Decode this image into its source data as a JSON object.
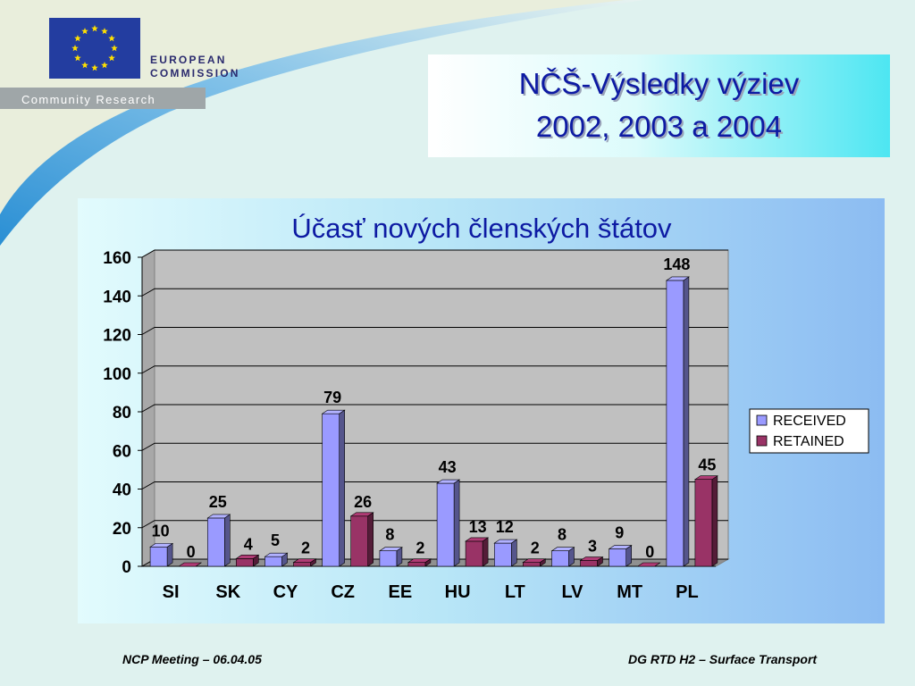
{
  "header": {
    "org_line1": "EUROPEAN",
    "org_line2": "COMMISSION",
    "tagline": "Community Research"
  },
  "slide": {
    "title_line1": "NČŠ-Výsledky výziev",
    "title_line2": "2002, 2003 a 2004"
  },
  "footer": {
    "left": "NCP Meeting – 06.04.05",
    "right": "DG RTD H2 – Surface Transport"
  },
  "chart_data": {
    "type": "bar",
    "title": "Účasť nových členských štátov",
    "categories": [
      "SI",
      "SK",
      "CY",
      "CZ",
      "EE",
      "HU",
      "LT",
      "LV",
      "MT",
      "PL"
    ],
    "series": [
      {
        "name": "RECEIVED",
        "color": "#9a9aff",
        "values": [
          10,
          25,
          5,
          79,
          8,
          43,
          12,
          8,
          9,
          148
        ]
      },
      {
        "name": "RETAINED",
        "color": "#993366",
        "values": [
          0,
          4,
          2,
          26,
          2,
          13,
          2,
          3,
          0,
          45
        ]
      }
    ],
    "ylim": [
      0,
      160
    ],
    "yticks": [
      0,
      20,
      40,
      60,
      80,
      100,
      120,
      140,
      160
    ],
    "grid": true,
    "legend": "right",
    "data_labels": true,
    "plot_background": "#c0c0c0"
  }
}
